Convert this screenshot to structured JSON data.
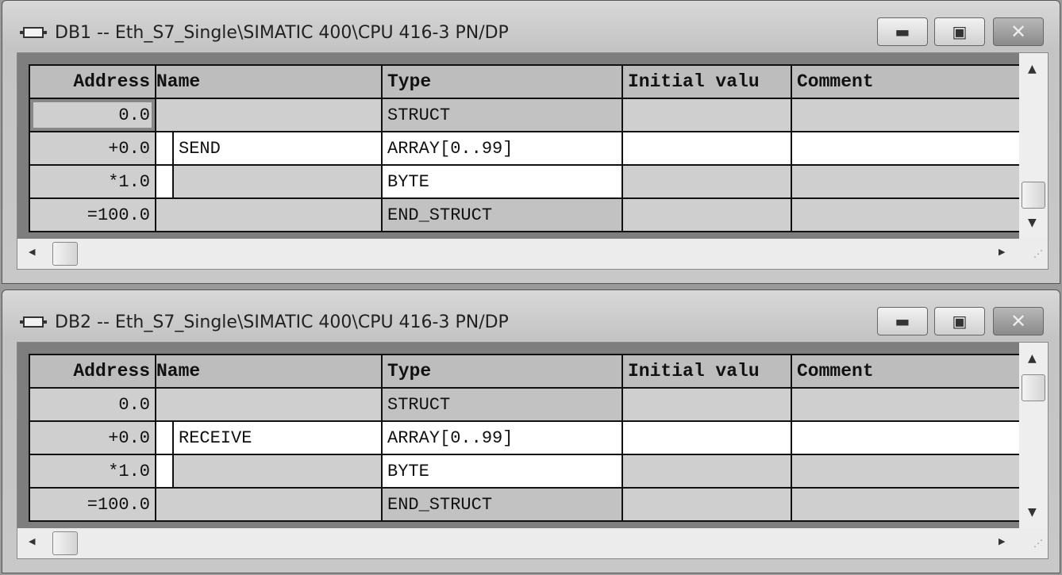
{
  "windows": [
    {
      "title": "DB1 -- Eth_S7_Single\\SIMATIC 400\\CPU 416-3 PN/DP",
      "vscroll_position": "bottom",
      "columns": [
        "Address",
        "Name",
        "Type",
        "Initial valu",
        "Comment"
      ],
      "rows": [
        {
          "address": "0.0",
          "name": "",
          "type": "STRUCT",
          "initial": "",
          "comment": "",
          "selected": true
        },
        {
          "address": "+0.0",
          "name": "SEND",
          "type": "ARRAY[0..99]",
          "initial": "",
          "comment": ""
        },
        {
          "address": "*1.0",
          "name": "",
          "type": "BYTE",
          "initial": "",
          "comment": ""
        },
        {
          "address": "=100.0",
          "name": "",
          "type": "END_STRUCT",
          "initial": "",
          "comment": ""
        }
      ]
    },
    {
      "title": "DB2 -- Eth_S7_Single\\SIMATIC 400\\CPU 416-3 PN/DP",
      "vscroll_position": "top",
      "columns": [
        "Address",
        "Name",
        "Type",
        "Initial valu",
        "Comment"
      ],
      "rows": [
        {
          "address": "0.0",
          "name": "",
          "type": "STRUCT",
          "initial": "",
          "comment": ""
        },
        {
          "address": "+0.0",
          "name": "RECEIVE",
          "type": "ARRAY[0..99]",
          "initial": "",
          "comment": ""
        },
        {
          "address": "*1.0",
          "name": "",
          "type": "BYTE",
          "initial": "",
          "comment": ""
        },
        {
          "address": "=100.0",
          "name": "",
          "type": "END_STRUCT",
          "initial": "",
          "comment": ""
        }
      ]
    }
  ],
  "icons": {
    "window": "db-block-icon",
    "minimize": "minimize-icon",
    "maximize": "maximize-icon",
    "close": "close-icon"
  }
}
